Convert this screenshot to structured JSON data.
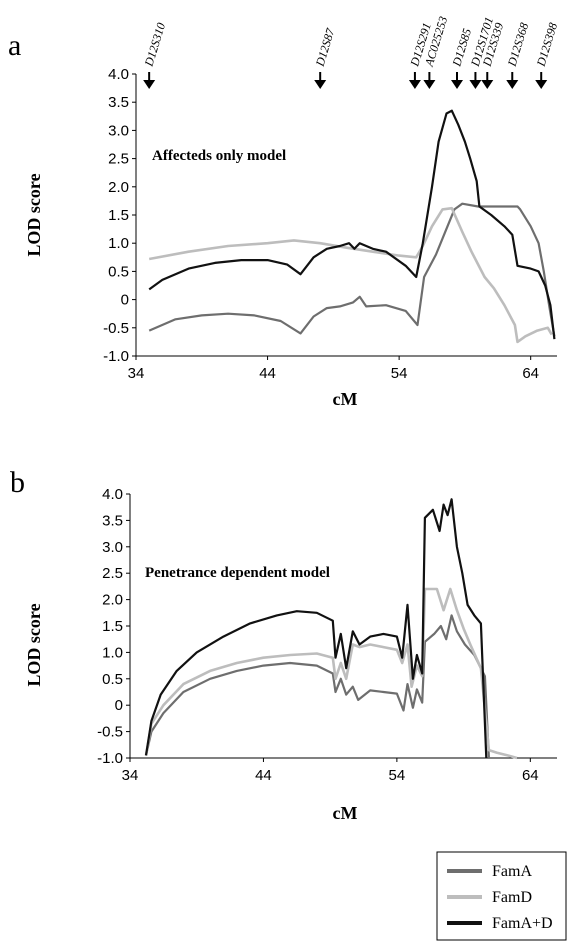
{
  "legend": [
    {
      "name": "FamA",
      "color": "#6e6e6e"
    },
    {
      "name": "FamD",
      "color": "#bdbdbd"
    },
    {
      "name": "FamA+D",
      "color": "#111111"
    }
  ],
  "chart_data": [
    {
      "type": "line",
      "panel_label": "a",
      "title": "",
      "annotation": "Affecteds only model",
      "xlabel": "cM",
      "ylabel": "LOD score",
      "xlim": [
        34,
        66
      ],
      "ylim": [
        -1.0,
        4.0
      ],
      "xticks": [
        "34",
        "44",
        "54",
        "64"
      ],
      "yticks": [
        "-1.0",
        "-0.5",
        "0",
        "0.5",
        "1.0",
        "1.5",
        "2.0",
        "2.5",
        "3.0",
        "3.5",
        "4.0"
      ],
      "markers": [
        {
          "label": "D12S310",
          "x": 35
        },
        {
          "label": "D12S87",
          "x": 48
        },
        {
          "label": "D12S291",
          "x": 55.2
        },
        {
          "label": "AC025253",
          "x": 56.3
        },
        {
          "label": "D12S85",
          "x": 58.4
        },
        {
          "label": "D12S1701",
          "x": 59.8
        },
        {
          "label": "D12S339",
          "x": 60.7
        },
        {
          "label": "D12S368",
          "x": 62.6
        },
        {
          "label": "D12S398",
          "x": 64.8
        }
      ],
      "series": [
        {
          "name": "FamA",
          "color": "#6e6e6e",
          "points": [
            [
              35,
              -0.55
            ],
            [
              37,
              -0.35
            ],
            [
              39,
              -0.28
            ],
            [
              41,
              -0.25
            ],
            [
              43,
              -0.28
            ],
            [
              45,
              -0.38
            ],
            [
              46.5,
              -0.6
            ],
            [
              47.5,
              -0.3
            ],
            [
              48.5,
              -0.15
            ],
            [
              49.5,
              -0.12
            ],
            [
              50.5,
              -0.05
            ],
            [
              51,
              0.05
            ],
            [
              51.5,
              -0.12
            ],
            [
              53,
              -0.1
            ],
            [
              54.5,
              -0.2
            ],
            [
              55.4,
              -0.45
            ],
            [
              55.9,
              0.4
            ],
            [
              56.8,
              0.8
            ],
            [
              57.5,
              1.2
            ],
            [
              58.2,
              1.6
            ],
            [
              58.8,
              1.7
            ],
            [
              60,
              1.65
            ],
            [
              62,
              1.65
            ],
            [
              63,
              1.65
            ],
            [
              63.2,
              1.6
            ],
            [
              64,
              1.3
            ],
            [
              64.6,
              1.0
            ],
            [
              65,
              0.5
            ],
            [
              65.4,
              -0.1
            ],
            [
              65.8,
              -0.65
            ]
          ]
        },
        {
          "name": "FamD",
          "color": "#bdbdbd",
          "points": [
            [
              35,
              0.72
            ],
            [
              38,
              0.85
            ],
            [
              41,
              0.95
            ],
            [
              44,
              1.0
            ],
            [
              46,
              1.05
            ],
            [
              48,
              1.0
            ],
            [
              50,
              0.92
            ],
            [
              52,
              0.85
            ],
            [
              54,
              0.78
            ],
            [
              55.3,
              0.75
            ],
            [
              55.8,
              0.95
            ],
            [
              56.5,
              1.3
            ],
            [
              57.3,
              1.6
            ],
            [
              58,
              1.62
            ],
            [
              58.8,
              1.2
            ],
            [
              59.5,
              0.85
            ],
            [
              60.5,
              0.4
            ],
            [
              61.2,
              0.2
            ],
            [
              62,
              -0.1
            ],
            [
              62.8,
              -0.45
            ],
            [
              63,
              -0.75
            ],
            [
              63.6,
              -0.65
            ],
            [
              64.5,
              -0.55
            ],
            [
              65.3,
              -0.5
            ],
            [
              65.6,
              -0.62
            ]
          ]
        },
        {
          "name": "FamA+D",
          "color": "#111111",
          "points": [
            [
              35,
              0.18
            ],
            [
              36,
              0.35
            ],
            [
              38,
              0.55
            ],
            [
              40,
              0.65
            ],
            [
              42,
              0.7
            ],
            [
              44,
              0.7
            ],
            [
              45.5,
              0.62
            ],
            [
              46.5,
              0.45
            ],
            [
              47.5,
              0.75
            ],
            [
              48.5,
              0.9
            ],
            [
              49.5,
              0.95
            ],
            [
              50.2,
              1.0
            ],
            [
              50.6,
              0.9
            ],
            [
              51,
              1.0
            ],
            [
              52,
              0.9
            ],
            [
              53,
              0.85
            ],
            [
              54.5,
              0.6
            ],
            [
              55.3,
              0.4
            ],
            [
              55.8,
              1.0
            ],
            [
              56.5,
              2.0
            ],
            [
              57,
              2.8
            ],
            [
              57.6,
              3.3
            ],
            [
              58,
              3.35
            ],
            [
              58.5,
              3.1
            ],
            [
              59,
              2.8
            ],
            [
              59.4,
              2.5
            ],
            [
              59.9,
              2.1
            ],
            [
              60.1,
              1.65
            ],
            [
              61,
              1.5
            ],
            [
              62,
              1.3
            ],
            [
              62.6,
              1.15
            ],
            [
              63,
              0.6
            ],
            [
              64,
              0.55
            ],
            [
              64.6,
              0.5
            ],
            [
              65.1,
              0.25
            ],
            [
              65.5,
              -0.1
            ],
            [
              65.8,
              -0.7
            ]
          ]
        }
      ]
    },
    {
      "type": "line",
      "panel_label": "b",
      "title": "",
      "annotation": "Penetrance dependent model",
      "xlabel": "cM",
      "ylabel": "LOD score",
      "xlim": [
        34,
        66
      ],
      "ylim": [
        -1.0,
        4.0
      ],
      "xticks": [
        "34",
        "44",
        "54",
        "64"
      ],
      "yticks": [
        "-1.0",
        "-0.5",
        "0",
        "0.5",
        "1.0",
        "1.5",
        "2.0",
        "2.5",
        "3.0",
        "3.5",
        "4.0"
      ],
      "series": [
        {
          "name": "FamA",
          "color": "#6e6e6e",
          "points": [
            [
              35.2,
              -0.95
            ],
            [
              35.6,
              -0.5
            ],
            [
              36.5,
              -0.15
            ],
            [
              38,
              0.25
            ],
            [
              40,
              0.5
            ],
            [
              42,
              0.65
            ],
            [
              44,
              0.75
            ],
            [
              46,
              0.8
            ],
            [
              48,
              0.75
            ],
            [
              49.2,
              0.6
            ],
            [
              49.4,
              0.25
            ],
            [
              49.8,
              0.5
            ],
            [
              50.2,
              0.2
            ],
            [
              50.7,
              0.35
            ],
            [
              51.1,
              0.1
            ],
            [
              52,
              0.28
            ],
            [
              53,
              0.25
            ],
            [
              54,
              0.22
            ],
            [
              54.5,
              -0.1
            ],
            [
              54.8,
              0.4
            ],
            [
              55.2,
              -0.05
            ],
            [
              55.5,
              0.3
            ],
            [
              55.9,
              0.05
            ],
            [
              56.1,
              1.2
            ],
            [
              56.8,
              1.35
            ],
            [
              57.3,
              1.5
            ],
            [
              57.7,
              1.25
            ],
            [
              58.1,
              1.7
            ],
            [
              58.5,
              1.4
            ],
            [
              59.1,
              1.15
            ],
            [
              59.8,
              0.95
            ],
            [
              60.6,
              0.55
            ],
            [
              60.9,
              -1.0
            ]
          ]
        },
        {
          "name": "FamD",
          "color": "#bdbdbd",
          "points": [
            [
              35.2,
              -0.95
            ],
            [
              35.6,
              -0.35
            ],
            [
              36.5,
              0.0
            ],
            [
              38,
              0.4
            ],
            [
              40,
              0.65
            ],
            [
              42,
              0.8
            ],
            [
              44,
              0.9
            ],
            [
              46,
              0.95
            ],
            [
              48,
              0.98
            ],
            [
              49.2,
              0.9
            ],
            [
              49.4,
              0.5
            ],
            [
              49.8,
              0.8
            ],
            [
              50.2,
              0.5
            ],
            [
              50.7,
              1.15
            ],
            [
              51.2,
              1.1
            ],
            [
              52,
              1.15
            ],
            [
              53,
              1.1
            ],
            [
              54,
              1.05
            ],
            [
              54.4,
              0.8
            ],
            [
              54.8,
              1.15
            ],
            [
              55.1,
              0.35
            ],
            [
              55.5,
              0.75
            ],
            [
              55.9,
              0.55
            ],
            [
              56.1,
              2.2
            ],
            [
              57,
              2.2
            ],
            [
              57.5,
              1.8
            ],
            [
              58,
              2.2
            ],
            [
              58.5,
              1.8
            ],
            [
              59,
              1.45
            ],
            [
              59.5,
              1.15
            ],
            [
              60.3,
              0.7
            ],
            [
              60.9,
              -0.85
            ],
            [
              61.5,
              -0.9
            ],
            [
              62.3,
              -0.95
            ],
            [
              63,
              -1.0
            ]
          ]
        },
        {
          "name": "FamA+D",
          "color": "#111111",
          "points": [
            [
              35.2,
              -0.95
            ],
            [
              35.6,
              -0.3
            ],
            [
              36.3,
              0.2
            ],
            [
              37.5,
              0.65
            ],
            [
              39,
              1.0
            ],
            [
              41,
              1.3
            ],
            [
              43,
              1.55
            ],
            [
              45,
              1.7
            ],
            [
              46.5,
              1.78
            ],
            [
              48,
              1.75
            ],
            [
              49.2,
              1.6
            ],
            [
              49.4,
              0.9
            ],
            [
              49.8,
              1.35
            ],
            [
              50.2,
              0.7
            ],
            [
              50.7,
              1.4
            ],
            [
              51.2,
              1.15
            ],
            [
              52,
              1.3
            ],
            [
              53,
              1.35
            ],
            [
              54,
              1.3
            ],
            [
              54.4,
              0.9
            ],
            [
              54.8,
              1.9
            ],
            [
              55.2,
              0.5
            ],
            [
              55.5,
              0.95
            ],
            [
              55.9,
              0.6
            ],
            [
              56.1,
              3.55
            ],
            [
              56.7,
              3.7
            ],
            [
              57.2,
              3.3
            ],
            [
              57.5,
              3.8
            ],
            [
              57.8,
              3.6
            ],
            [
              58.1,
              3.9
            ],
            [
              58.5,
              3.0
            ],
            [
              58.9,
              2.5
            ],
            [
              59.3,
              1.9
            ],
            [
              59.8,
              1.7
            ],
            [
              60.3,
              1.55
            ],
            [
              60.7,
              -1.0
            ]
          ]
        }
      ]
    }
  ]
}
